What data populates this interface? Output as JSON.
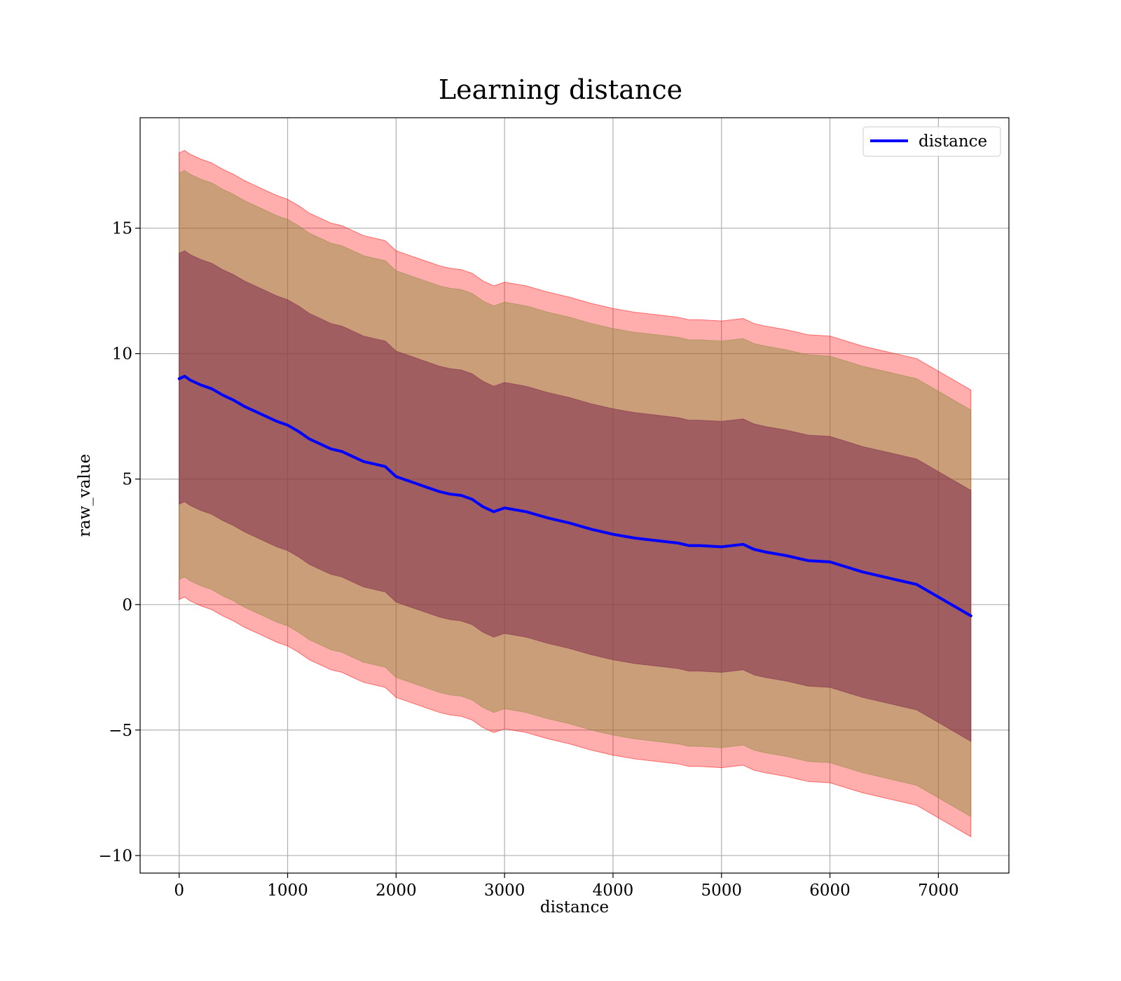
{
  "chart_data": {
    "type": "line",
    "title": "Learning distance",
    "xlabel": "distance",
    "ylabel": "raw_value",
    "xlim": [
      -360,
      7650
    ],
    "ylim": [
      -10.7,
      19.4
    ],
    "xticks": [
      0,
      1000,
      2000,
      3000,
      4000,
      5000,
      6000,
      7000
    ],
    "xtick_labels": [
      "0",
      "1000",
      "2000",
      "3000",
      "4000",
      "5000",
      "6000",
      "7000"
    ],
    "yticks": [
      -10,
      -5,
      0,
      5,
      10,
      15
    ],
    "ytick_labels": [
      "−10",
      "−5",
      "0",
      "5",
      "10",
      "15"
    ],
    "grid": true,
    "legend": {
      "position": "top-right",
      "entries": [
        "distance"
      ]
    },
    "colors": {
      "line": "#0000ff",
      "band_outer": "#ff0000",
      "band_middle": "#8c8c3c",
      "band_inner": "#7f2a4a",
      "grid": "#b0b0b0"
    },
    "series": [
      {
        "name": "distance",
        "x": [
          0,
          50,
          100,
          200,
          300,
          400,
          500,
          600,
          700,
          800,
          900,
          1000,
          1100,
          1200,
          1300,
          1400,
          1500,
          1600,
          1700,
          1800,
          1900,
          1950,
          2000,
          2100,
          2200,
          2300,
          2400,
          2500,
          2600,
          2700,
          2800,
          2900,
          3000,
          3200,
          3400,
          3600,
          3800,
          4000,
          4200,
          4400,
          4600,
          4700,
          4800,
          5000,
          5200,
          5300,
          5400,
          5600,
          5800,
          6000,
          6300,
          6600,
          6800,
          7000,
          7300
        ],
        "y": [
          9.0,
          9.1,
          8.95,
          8.75,
          8.6,
          8.35,
          8.15,
          7.9,
          7.7,
          7.5,
          7.3,
          7.15,
          6.9,
          6.6,
          6.4,
          6.2,
          6.1,
          5.9,
          5.7,
          5.6,
          5.5,
          5.3,
          5.1,
          4.95,
          4.8,
          4.65,
          4.5,
          4.4,
          4.35,
          4.2,
          3.9,
          3.7,
          3.85,
          3.7,
          3.45,
          3.25,
          3.0,
          2.8,
          2.65,
          2.55,
          2.45,
          2.35,
          2.35,
          2.3,
          2.4,
          2.2,
          2.1,
          1.95,
          1.75,
          1.7,
          1.3,
          1.0,
          0.8,
          0.3,
          -0.45
        ]
      }
    ],
    "bands": [
      {
        "label": "outer",
        "offset_upper": 9.0,
        "offset_lower": 8.8
      },
      {
        "label": "middle",
        "offset_upper": 8.2,
        "offset_lower": 8.0
      },
      {
        "label": "inner",
        "offset_upper": 5.0,
        "offset_lower": 5.0
      }
    ]
  }
}
